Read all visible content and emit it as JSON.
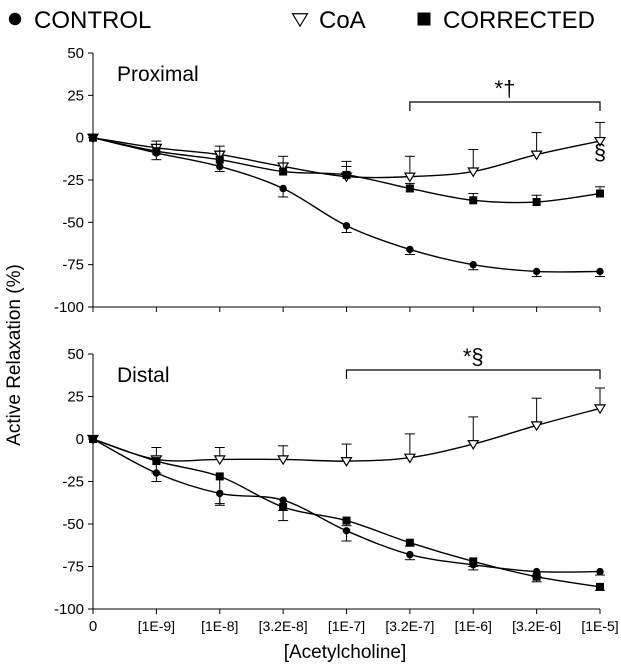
{
  "chart_data": [
    {
      "type": "line",
      "panel_label": "Proximal",
      "x_categories": [
        "0",
        "[1E-9]",
        "[1E-8]",
        "[3.2E-8]",
        "[1E-7]",
        "[3.2E-7]",
        "[1E-6]",
        "[3.2E-6]",
        "[1E-5]"
      ],
      "ylim": [
        -100,
        50
      ],
      "yticks": [
        "50",
        "25",
        "0",
        "-25",
        "-50",
        "-75",
        "-100"
      ],
      "ytick_values": [
        50,
        25,
        0,
        -25,
        -50,
        -75,
        -100
      ],
      "series": [
        {
          "name": "CONTROL",
          "marker": "circle",
          "values": [
            0,
            -9,
            -17,
            -30,
            -52,
            -66,
            -75,
            -79,
            -79
          ],
          "errors": [
            0,
            4,
            3,
            5,
            4,
            3,
            3,
            3,
            3
          ]
        },
        {
          "name": "CoA",
          "marker": "triangle-down-open",
          "values": [
            0,
            -6,
            -10,
            -17,
            -23,
            -23,
            -20,
            -10,
            -2
          ],
          "errors": [
            0,
            4,
            5,
            6,
            9,
            12,
            13,
            13,
            11
          ]
        },
        {
          "name": "CORRECTED",
          "marker": "square",
          "values": [
            0,
            -8,
            -13,
            -20,
            -22,
            -30,
            -37,
            -38,
            -33
          ],
          "errors": [
            0,
            4,
            5,
            5,
            5,
            3,
            4,
            4,
            4
          ]
        }
      ],
      "annotations": {
        "bracket": "*†",
        "bracket_from": "[3.2E-7]",
        "bracket_to": "[1E-5]",
        "side_mark": "§",
        "side_mark_at": "[1E-5]"
      }
    },
    {
      "type": "line",
      "panel_label": "Distal",
      "x_categories": [
        "0",
        "[1E-9]",
        "[1E-8]",
        "[3.2E-8]",
        "[1E-7]",
        "[3.2E-7]",
        "[1E-6]",
        "[3.2E-6]",
        "[1E-5]"
      ],
      "ylim": [
        -100,
        50
      ],
      "yticks": [
        "50",
        "25",
        "0",
        "-25",
        "-50",
        "-75",
        "-100"
      ],
      "ytick_values": [
        50,
        25,
        0,
        -25,
        -50,
        -75,
        -100
      ],
      "series": [
        {
          "name": "CONTROL",
          "marker": "circle",
          "values": [
            0,
            -20,
            -32,
            -36,
            -54,
            -68,
            -74,
            -78,
            -78
          ],
          "errors": [
            0,
            5,
            7,
            6,
            6,
            3,
            3,
            3,
            2
          ]
        },
        {
          "name": "CoA",
          "marker": "triangle-down-open",
          "values": [
            0,
            -12,
            -12,
            -12,
            -13,
            -11,
            -3,
            8,
            18
          ],
          "errors": [
            0,
            7,
            7,
            8,
            10,
            14,
            16,
            16,
            12
          ]
        },
        {
          "name": "CORRECTED",
          "marker": "square",
          "values": [
            0,
            -13,
            -22,
            -40,
            -48,
            -61,
            -72,
            -81,
            -87
          ],
          "errors": [
            0,
            7,
            16,
            8,
            3,
            2,
            3,
            3,
            2
          ]
        }
      ],
      "annotations": {
        "bracket": "*§",
        "bracket_from": "[1E-7]",
        "bracket_to": "[1E-5]"
      }
    }
  ],
  "legend": [
    {
      "label": "CONTROL",
      "marker": "circle"
    },
    {
      "label": "CoA",
      "marker": "triangle-down-open"
    },
    {
      "label": "CORRECTED",
      "marker": "square"
    }
  ],
  "ylabel": "Active Relaxation (%)",
  "xlabel": "[Acetylcholine]"
}
